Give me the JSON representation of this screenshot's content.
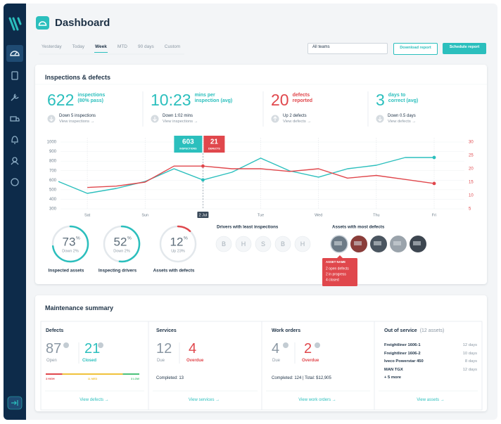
{
  "header": {
    "title": "Dashboard"
  },
  "tabs": {
    "items": [
      "Yesterday",
      "Today",
      "Week",
      "MTD",
      "90 days",
      "Custom"
    ],
    "active": 2
  },
  "toolbar": {
    "team_select": "All teams",
    "download": "Download report",
    "schedule": "Schedule report"
  },
  "inspections": {
    "title": "Inspections & defects",
    "kpis": [
      {
        "value": "622",
        "label": "inspections",
        "sub": "(80% pass)",
        "trend": "Down 5 inspections",
        "link": "View inspections →",
        "color": "#2bbfbd",
        "dir": "down"
      },
      {
        "value": "10:23",
        "label": "mins per",
        "sub": "inspection (avg)",
        "trend": "Down 1:02 mins",
        "link": "View inspections →",
        "color": "#2bbfbd",
        "dir": "down"
      },
      {
        "value": "20",
        "label": "defects",
        "sub": "reported",
        "trend": "Up 2 defects",
        "link": "View defects →",
        "color": "#e0474c",
        "dir": "up"
      },
      {
        "value": "3",
        "label": "days to",
        "sub": "correct (avg)",
        "trend": "Down 0.5 days",
        "link": "View defects →",
        "color": "#2bbfbd",
        "dir": "down"
      }
    ]
  },
  "chart_data": {
    "type": "line",
    "categories": [
      null,
      "Sat",
      null,
      "Sun",
      null,
      "2 Jul",
      null,
      "Tue",
      null,
      "Wed",
      null,
      "Thu",
      null,
      "Fri"
    ],
    "series": [
      {
        "name": "INSPECTIONS",
        "color": "#2bbfbd",
        "values": [
          587,
          462,
          514,
          587,
          720,
          603,
          683,
          831,
          698,
          632,
          720,
          757,
          838,
          838
        ]
      },
      {
        "name": "DEFECTS",
        "color": "#e0474c",
        "axis": "y2",
        "values": [
          null,
          13,
          13.5,
          15,
          21,
          21,
          20,
          20,
          19,
          20,
          16.5,
          17.5,
          16,
          14.5
        ]
      }
    ],
    "ylim": [
      300,
      1000
    ],
    "yticks": [
      300,
      400,
      500,
      600,
      700,
      800,
      900,
      1000
    ],
    "y2lim": [
      5,
      30
    ],
    "y2ticks": [
      5,
      10,
      15,
      20,
      25,
      30
    ],
    "grid": true,
    "highlight": 5
  },
  "gauges": [
    {
      "value": 73,
      "unit": "%",
      "change": "Down 2%",
      "label": "Inspected assets",
      "color": "#2bbfbd"
    },
    {
      "value": 52,
      "unit": "%",
      "change": "Down 2%",
      "label": "Inspecting drivers",
      "color": "#2bbfbd"
    },
    {
      "value": 12,
      "unit": "%",
      "change": "Up 23%",
      "label": "Assets with defects",
      "color": "#e0474c"
    }
  ],
  "drivers": {
    "title": "Drivers with least inspections",
    "initials": [
      "B",
      "H",
      "S",
      "B",
      "H"
    ]
  },
  "assets": {
    "title": "Assets with most defects",
    "count_photos": 5,
    "tooltip": {
      "title": "ASSET NAME",
      "lines": [
        "2 open defects",
        "2 in progress",
        "4 closed"
      ]
    }
  },
  "maintenance": {
    "title": "Maintenance summary",
    "defects": {
      "title": "Defects",
      "open": 87,
      "open_label": "Open",
      "closed": 21,
      "closed_label": "Closed",
      "severity": [
        {
          "value": 3,
          "label": "3 HIGH",
          "color": "#e0474c"
        },
        {
          "value": 11,
          "label": "11 MED",
          "color": "#f0c23b"
        },
        {
          "value": 3,
          "label": "3 LOW",
          "color": "#4cc17a"
        }
      ],
      "link": "View defects →"
    },
    "services": {
      "title": "Services",
      "due": 12,
      "due_label": "Due",
      "overdue": 4,
      "overdue_label": "Overdue",
      "completed": "Completed: 13",
      "link": "View services →"
    },
    "work_orders": {
      "title": "Work orders",
      "due": 4,
      "due_label": "Due",
      "overdue": 2,
      "overdue_label": "Overdue",
      "completed": "Completed: 124  |  Total: $12,905",
      "link": "View work orders →"
    },
    "out_of_service": {
      "title": "Out of service",
      "count": "(12 assets)",
      "items": [
        {
          "name": "Freightliner 1606-1",
          "days": "12 days"
        },
        {
          "name": "Freightliner 1606-2",
          "days": "10 days"
        },
        {
          "name": "Iveco Powerstar 450",
          "days": "8 days"
        },
        {
          "name": "MAN TGX",
          "days": "12 days"
        }
      ],
      "more": "+ 5 more",
      "link": "View assets →"
    }
  }
}
